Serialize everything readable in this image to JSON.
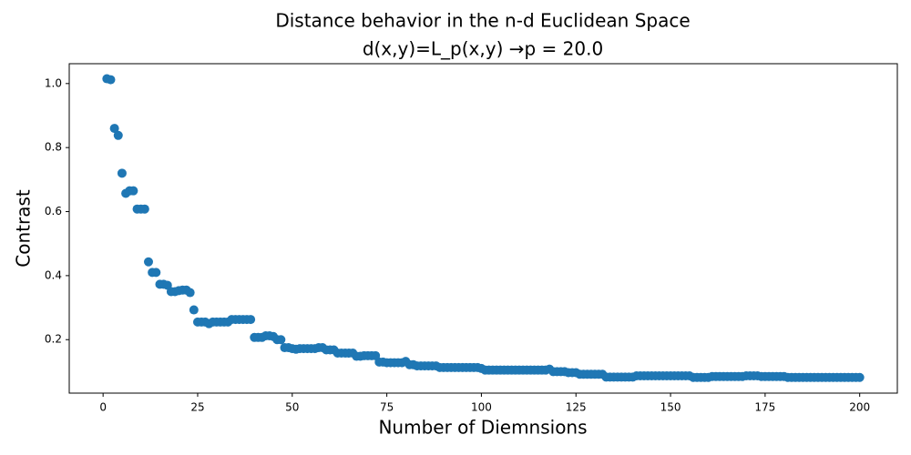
{
  "chart_data": {
    "type": "scatter",
    "title": [
      "Distance behavior in the n-d Euclidean Space",
      "d(x,y)=L_p(x,y) →p =  20.0"
    ],
    "x_label": "Number of Diemnsions",
    "y_label": "Contrast",
    "series": [
      {
        "color": "#1f77b4",
        "x": [
          1,
          2,
          3,
          4,
          5,
          6,
          7,
          8,
          9,
          10,
          11,
          12,
          13,
          14,
          15,
          16,
          17,
          18,
          19,
          20,
          21,
          22,
          23,
          24,
          25,
          26,
          27,
          28,
          29,
          30,
          31,
          32,
          33,
          34,
          35,
          36,
          37,
          38,
          39,
          40,
          41,
          42,
          43,
          44,
          45,
          46,
          47,
          48,
          49,
          50,
          51,
          52,
          53,
          54,
          55,
          56,
          57,
          58,
          59,
          60,
          61,
          62,
          63,
          64,
          65,
          66,
          67,
          68,
          69,
          70,
          71,
          72,
          73,
          74,
          75,
          76,
          77,
          78,
          79,
          80,
          81,
          82,
          83,
          84,
          85,
          86,
          87,
          88,
          89,
          90,
          91,
          92,
          93,
          94,
          95,
          96,
          97,
          98,
          99,
          100,
          101,
          102,
          103,
          104,
          105,
          106,
          107,
          108,
          109,
          110,
          111,
          112,
          113,
          114,
          115,
          116,
          117,
          118,
          119,
          120,
          121,
          122,
          123,
          124,
          125,
          126,
          127,
          128,
          129,
          130,
          131,
          132,
          133,
          134,
          135,
          136,
          137,
          138,
          139,
          140,
          141,
          142,
          143,
          144,
          145,
          146,
          147,
          148,
          149,
          150,
          151,
          152,
          153,
          154,
          155,
          156,
          157,
          158,
          159,
          160,
          161,
          162,
          163,
          164,
          165,
          166,
          167,
          168,
          169,
          170,
          171,
          172,
          173,
          174,
          175,
          176,
          177,
          178,
          179,
          180,
          181,
          182,
          183,
          184,
          185,
          186,
          187,
          188,
          189,
          190,
          191,
          192,
          193,
          194,
          195,
          196,
          197,
          198,
          199,
          200
        ],
        "values": [
          1.015,
          1.012,
          0.86,
          0.838,
          0.72,
          0.657,
          0.665,
          0.665,
          0.608,
          0.608,
          0.608,
          0.443,
          0.41,
          0.41,
          0.373,
          0.373,
          0.37,
          0.35,
          0.35,
          0.353,
          0.355,
          0.355,
          0.347,
          0.293,
          0.255,
          0.255,
          0.255,
          0.25,
          0.255,
          0.255,
          0.255,
          0.255,
          0.255,
          0.263,
          0.263,
          0.263,
          0.263,
          0.263,
          0.263,
          0.207,
          0.207,
          0.207,
          0.212,
          0.212,
          0.21,
          0.2,
          0.2,
          0.175,
          0.175,
          0.172,
          0.17,
          0.172,
          0.172,
          0.172,
          0.172,
          0.172,
          0.175,
          0.175,
          0.168,
          0.168,
          0.168,
          0.158,
          0.158,
          0.158,
          0.158,
          0.158,
          0.148,
          0.148,
          0.15,
          0.15,
          0.15,
          0.15,
          0.13,
          0.13,
          0.128,
          0.128,
          0.128,
          0.128,
          0.128,
          0.132,
          0.122,
          0.122,
          0.118,
          0.118,
          0.118,
          0.118,
          0.118,
          0.118,
          0.113,
          0.113,
          0.113,
          0.113,
          0.113,
          0.113,
          0.113,
          0.113,
          0.113,
          0.113,
          0.113,
          0.11,
          0.105,
          0.105,
          0.105,
          0.105,
          0.105,
          0.105,
          0.105,
          0.105,
          0.105,
          0.105,
          0.105,
          0.105,
          0.105,
          0.105,
          0.105,
          0.105,
          0.105,
          0.108,
          0.1,
          0.1,
          0.1,
          0.1,
          0.097,
          0.097,
          0.097,
          0.092,
          0.092,
          0.092,
          0.092,
          0.092,
          0.092,
          0.092,
          0.083,
          0.083,
          0.083,
          0.083,
          0.083,
          0.083,
          0.083,
          0.083,
          0.087,
          0.087,
          0.087,
          0.087,
          0.087,
          0.087,
          0.087,
          0.087,
          0.087,
          0.087,
          0.087,
          0.087,
          0.087,
          0.087,
          0.087,
          0.082,
          0.082,
          0.082,
          0.082,
          0.082,
          0.085,
          0.085,
          0.085,
          0.085,
          0.085,
          0.085,
          0.085,
          0.085,
          0.085,
          0.087,
          0.087,
          0.087,
          0.087,
          0.085,
          0.085,
          0.085,
          0.085,
          0.085,
          0.085,
          0.085,
          0.082,
          0.082,
          0.082,
          0.082,
          0.082,
          0.082,
          0.082,
          0.082,
          0.082,
          0.082,
          0.082,
          0.082,
          0.082,
          0.082,
          0.082,
          0.082,
          0.082,
          0.082,
          0.082,
          0.082
        ]
      }
    ],
    "xlim": [
      -8.95,
      209.95
    ],
    "xticks": [
      0,
      25,
      50,
      75,
      100,
      125,
      150,
      175,
      200
    ],
    "ylim": [
      0.033,
      1.062
    ],
    "yticks": [
      0.2,
      0.4,
      0.6,
      0.8,
      {
        "value": 1,
        "label": "1.0"
      }
    ],
    "grid": false
  }
}
